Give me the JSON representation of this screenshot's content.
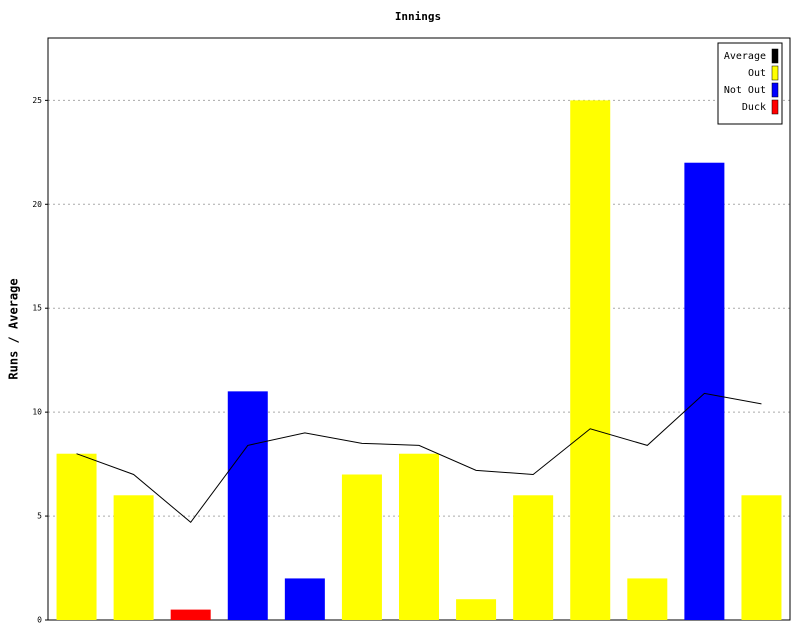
{
  "chart_data": {
    "type": "bar",
    "title": "Innings",
    "y_label": "Runs / Average",
    "categories": [
      null,
      null,
      null,
      null,
      null,
      null,
      null,
      null,
      null,
      null,
      null,
      null,
      null
    ],
    "series": [
      {
        "name": "Average",
        "type": "line",
        "color": "#000000",
        "values": [
          8,
          7,
          4.7,
          8.4,
          9,
          8.5,
          8.4,
          7.2,
          7,
          9.2,
          8.4,
          10.9,
          10.4
        ]
      },
      {
        "name": "Out",
        "color": "#ffff00",
        "values": [
          8,
          6,
          null,
          null,
          null,
          7,
          8,
          1,
          6,
          25,
          2,
          null,
          6
        ]
      },
      {
        "name": "Not Out",
        "color": "#0000ff",
        "values": [
          null,
          null,
          null,
          11,
          2,
          null,
          null,
          null,
          null,
          null,
          null,
          22,
          null
        ]
      },
      {
        "name": "Duck",
        "color": "#ff0000",
        "values": [
          null,
          null,
          0.5,
          null,
          null,
          null,
          null,
          null,
          null,
          null,
          null,
          null,
          null
        ]
      }
    ],
    "ylim": [
      0,
      28
    ],
    "yticks": [
      0,
      5,
      10,
      15,
      20,
      25
    ],
    "grid": true
  }
}
